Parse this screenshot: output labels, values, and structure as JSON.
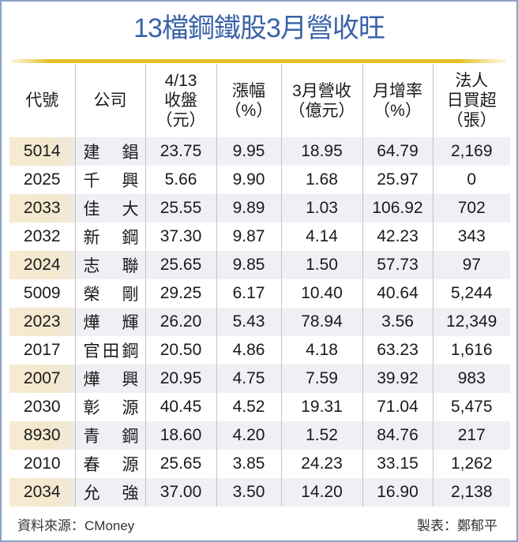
{
  "title": "13檔鋼鐵股3月營收旺",
  "colors": {
    "title": "#3a63a8",
    "rule": "#e3bf22",
    "frame_border": "#8aa4c8",
    "alt_row": "#eef0f4",
    "alt_code_cell": "#f4e8cc"
  },
  "table": {
    "headers": [
      {
        "lines": [
          "代號"
        ]
      },
      {
        "lines": [
          "公司"
        ]
      },
      {
        "lines": [
          "4/13",
          "收盤",
          "（元）"
        ]
      },
      {
        "lines": [
          "漲幅",
          "（%）"
        ]
      },
      {
        "lines": [
          "3月營收",
          "（億元）"
        ]
      },
      {
        "lines": [
          "月增率",
          "（%）"
        ]
      },
      {
        "lines": [
          "法人",
          "日買超",
          "（張）"
        ]
      }
    ],
    "rows": [
      [
        "5014",
        "建錩",
        "23.75",
        "9.95",
        "18.95",
        "64.79",
        "2,169"
      ],
      [
        "2025",
        "千興",
        "5.66",
        "9.90",
        "1.68",
        "25.97",
        "0"
      ],
      [
        "2033",
        "佳大",
        "25.55",
        "9.89",
        "1.03",
        "106.92",
        "702"
      ],
      [
        "2032",
        "新鋼",
        "37.30",
        "9.87",
        "4.14",
        "42.23",
        "343"
      ],
      [
        "2024",
        "志聯",
        "25.65",
        "9.85",
        "1.50",
        "57.73",
        "97"
      ],
      [
        "5009",
        "榮剛",
        "29.25",
        "6.17",
        "10.40",
        "40.64",
        "5,244"
      ],
      [
        "2023",
        "燁輝",
        "26.20",
        "5.43",
        "78.94",
        "3.56",
        "12,349"
      ],
      [
        "2017",
        "官田鋼",
        "20.50",
        "4.86",
        "4.18",
        "63.23",
        "1,616"
      ],
      [
        "2007",
        "燁興",
        "20.95",
        "4.75",
        "7.59",
        "39.92",
        "983"
      ],
      [
        "2030",
        "彰源",
        "40.45",
        "4.52",
        "19.31",
        "71.04",
        "5,475"
      ],
      [
        "8930",
        "青鋼",
        "18.60",
        "4.20",
        "1.52",
        "84.76",
        "217"
      ],
      [
        "2010",
        "春源",
        "25.65",
        "3.85",
        "24.23",
        "33.15",
        "1,262"
      ],
      [
        "2034",
        "允強",
        "37.00",
        "3.50",
        "14.20",
        "16.90",
        "2,138"
      ]
    ]
  },
  "footer": {
    "source": "資料來源：CMoney",
    "author": "製表：鄭郁平"
  },
  "chart_data": {
    "type": "table",
    "title": "13檔鋼鐵股3月營收旺",
    "columns": [
      "代號",
      "公司",
      "4/13收盤(元)",
      "漲幅(%)",
      "3月營收(億元)",
      "月增率(%)",
      "法人日買超(張)"
    ],
    "rows": [
      {
        "code": "5014",
        "company": "建錩",
        "close": 23.75,
        "change_pct": 9.95,
        "mar_revenue": 18.95,
        "mom_pct": 64.79,
        "inst_net_buy": 2169
      },
      {
        "code": "2025",
        "company": "千興",
        "close": 5.66,
        "change_pct": 9.9,
        "mar_revenue": 1.68,
        "mom_pct": 25.97,
        "inst_net_buy": 0
      },
      {
        "code": "2033",
        "company": "佳大",
        "close": 25.55,
        "change_pct": 9.89,
        "mar_revenue": 1.03,
        "mom_pct": 106.92,
        "inst_net_buy": 702
      },
      {
        "code": "2032",
        "company": "新鋼",
        "close": 37.3,
        "change_pct": 9.87,
        "mar_revenue": 4.14,
        "mom_pct": 42.23,
        "inst_net_buy": 343
      },
      {
        "code": "2024",
        "company": "志聯",
        "close": 25.65,
        "change_pct": 9.85,
        "mar_revenue": 1.5,
        "mom_pct": 57.73,
        "inst_net_buy": 97
      },
      {
        "code": "5009",
        "company": "榮剛",
        "close": 29.25,
        "change_pct": 6.17,
        "mar_revenue": 10.4,
        "mom_pct": 40.64,
        "inst_net_buy": 5244
      },
      {
        "code": "2023",
        "company": "燁輝",
        "close": 26.2,
        "change_pct": 5.43,
        "mar_revenue": 78.94,
        "mom_pct": 3.56,
        "inst_net_buy": 12349
      },
      {
        "code": "2017",
        "company": "官田鋼",
        "close": 20.5,
        "change_pct": 4.86,
        "mar_revenue": 4.18,
        "mom_pct": 63.23,
        "inst_net_buy": 1616
      },
      {
        "code": "2007",
        "company": "燁興",
        "close": 20.95,
        "change_pct": 4.75,
        "mar_revenue": 7.59,
        "mom_pct": 39.92,
        "inst_net_buy": 983
      },
      {
        "code": "2030",
        "company": "彰源",
        "close": 40.45,
        "change_pct": 4.52,
        "mar_revenue": 19.31,
        "mom_pct": 71.04,
        "inst_net_buy": 5475
      },
      {
        "code": "8930",
        "company": "青鋼",
        "close": 18.6,
        "change_pct": 4.2,
        "mar_revenue": 1.52,
        "mom_pct": 84.76,
        "inst_net_buy": 217
      },
      {
        "code": "2010",
        "company": "春源",
        "close": 25.65,
        "change_pct": 3.85,
        "mar_revenue": 24.23,
        "mom_pct": 33.15,
        "inst_net_buy": 1262
      },
      {
        "code": "2034",
        "company": "允強",
        "close": 37.0,
        "change_pct": 3.5,
        "mar_revenue": 14.2,
        "mom_pct": 16.9,
        "inst_net_buy": 2138
      }
    ],
    "source": "CMoney"
  }
}
